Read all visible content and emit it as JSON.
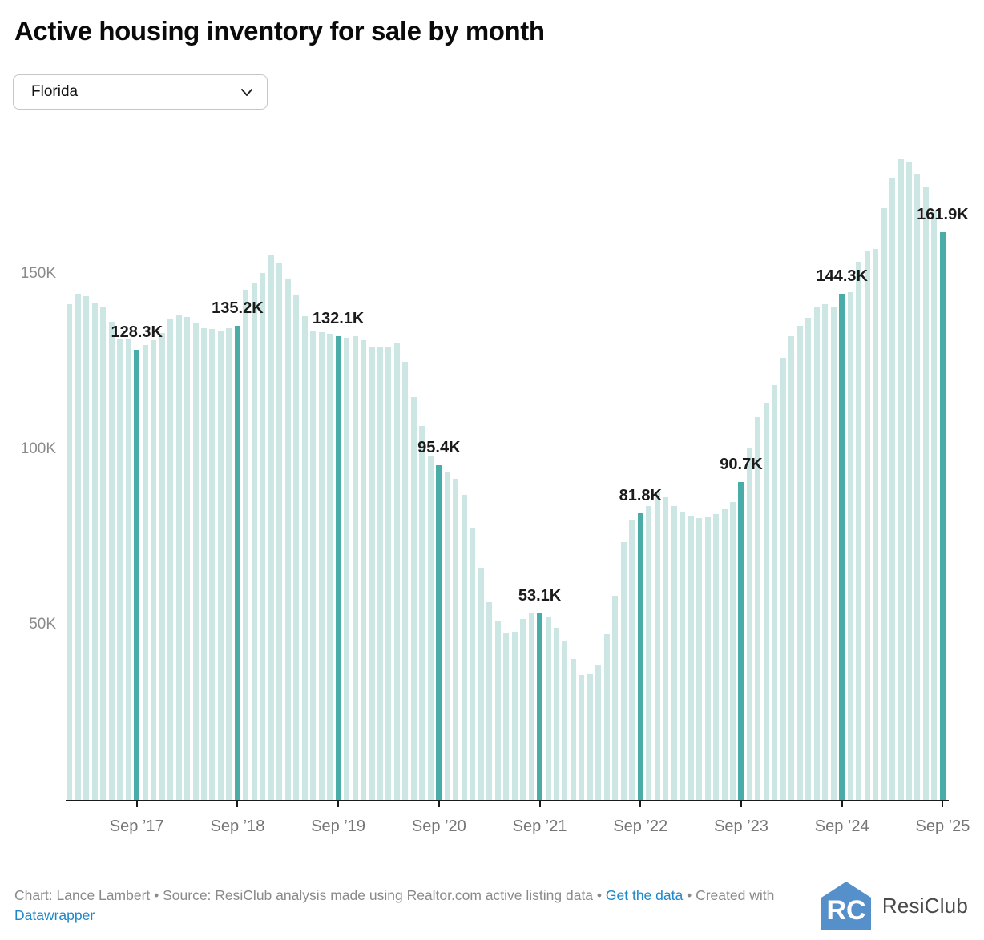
{
  "title": "Active housing inventory for sale by month",
  "dropdown": {
    "value": "Florida"
  },
  "chart_data": {
    "type": "bar",
    "period": "monthly",
    "x_first_bar": "Jan 2017",
    "x_last_bar": "Sep 2025",
    "values": [
      141.3,
      144.2,
      143.6,
      141.5,
      140.6,
      136.3,
      131.5,
      131.3,
      128.3,
      129.7,
      131.0,
      133.1,
      137.0,
      138.3,
      137.7,
      135.8,
      134.5,
      134.2,
      133.9,
      134.6,
      135.2,
      145.5,
      147.6,
      150.2,
      155.2,
      152.9,
      148.7,
      144.0,
      138.0,
      133.7,
      133.3,
      132.8,
      132.1,
      131.8,
      132.2,
      131.1,
      129.2,
      129.2,
      128.9,
      130.3,
      124.9,
      114.9,
      106.7,
      98.1,
      95.4,
      93.4,
      91.5,
      86.9,
      77.5,
      66.1,
      56.3,
      50.9,
      47.5,
      47.9,
      51.7,
      53.2,
      53.1,
      52.3,
      49.2,
      45.4,
      40.1,
      35.7,
      35.9,
      38.4,
      47.3,
      58.2,
      73.6,
      79.8,
      81.8,
      83.9,
      87.7,
      86.4,
      83.7,
      82.2,
      81.0,
      80.3,
      80.7,
      81.6,
      83.0,
      85.0,
      90.7,
      100.2,
      109.1,
      113.3,
      118.3,
      126.0,
      132.2,
      135.2,
      137.5,
      140.4,
      141.3,
      140.7,
      144.3,
      144.8,
      153.5,
      156.5,
      157.1,
      168.7,
      177.3,
      183.0,
      181.9,
      178.5,
      174.8,
      168.0,
      161.9
    ],
    "unit": "K",
    "highlight_indices": [
      8,
      20,
      32,
      44,
      56,
      68,
      80,
      92,
      104
    ],
    "annotations": [
      {
        "index": 8,
        "label": "128.3K"
      },
      {
        "index": 20,
        "label": "135.2K"
      },
      {
        "index": 32,
        "label": "132.1K"
      },
      {
        "index": 44,
        "label": "95.4K"
      },
      {
        "index": 56,
        "label": "53.1K"
      },
      {
        "index": 68,
        "label": "81.8K"
      },
      {
        "index": 80,
        "label": "90.7K"
      },
      {
        "index": 92,
        "label": "144.3K"
      },
      {
        "index": 104,
        "label": "161.9K"
      }
    ],
    "xticks": [
      {
        "index": 8,
        "label": "Sep ’17"
      },
      {
        "index": 20,
        "label": "Sep ’18"
      },
      {
        "index": 32,
        "label": "Sep ’19"
      },
      {
        "index": 44,
        "label": "Sep ’20"
      },
      {
        "index": 56,
        "label": "Sep ’21"
      },
      {
        "index": 68,
        "label": "Sep ’22"
      },
      {
        "index": 80,
        "label": "Sep ’23"
      },
      {
        "index": 92,
        "label": "Sep ’24"
      },
      {
        "index": 104,
        "label": "Sep ’25"
      }
    ],
    "yticks": [
      {
        "value": 50,
        "label": "50K"
      },
      {
        "value": 100,
        "label": "100K"
      },
      {
        "value": 150,
        "label": "150K"
      }
    ],
    "ylim": [
      0,
      187
    ],
    "grid": "off",
    "colors": {
      "bar": "#cce7e3",
      "highlight": "#49aca6"
    }
  },
  "footer": {
    "credit": "Chart: Lance Lambert • Source: ResiClub analysis made using Realtor.com active listing data • ",
    "get_data_label": "Get the data",
    "created_with": " • Created with ",
    "datawrapper_label": "Datawrapper"
  },
  "logo": {
    "text": "ResiClub",
    "icon_letters": "RC",
    "icon_color": "#5590cb"
  }
}
